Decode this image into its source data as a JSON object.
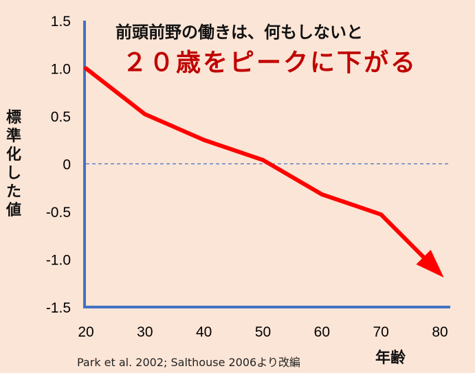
{
  "chart_data": {
    "type": "line",
    "title": "前頭前野の働きは、何もしないと",
    "subtitle": "２０歳をピークに下がる",
    "ylabel": "標準化した値",
    "xlabel": "年齢",
    "source": "Park et al. 2002; Salthouse 2006より改編",
    "x": [
      20,
      30,
      40,
      50,
      60,
      70,
      80
    ],
    "y": [
      1.0,
      0.52,
      0.25,
      0.04,
      -0.32,
      -0.53,
      -1.15
    ],
    "xlim": [
      20,
      80
    ],
    "ylim": [
      -1.5,
      1.5
    ],
    "x_ticks": [
      "20",
      "30",
      "40",
      "50",
      "60",
      "70",
      "80"
    ],
    "y_ticks": [
      "1.5",
      "1.0",
      "0.5",
      "0",
      "-0.5",
      "-1.0",
      "-1.5"
    ],
    "y_tick_values": [
      1.5,
      1.0,
      0.5,
      0,
      -0.5,
      -1.0,
      -1.5
    ],
    "reference_line": 0,
    "arrow_end": true,
    "colors": {
      "line": "#ff0000",
      "axis": "#4472c4",
      "reference": "#4472c4",
      "background": "#fbe5d6",
      "subtitle": "#c00000"
    }
  }
}
